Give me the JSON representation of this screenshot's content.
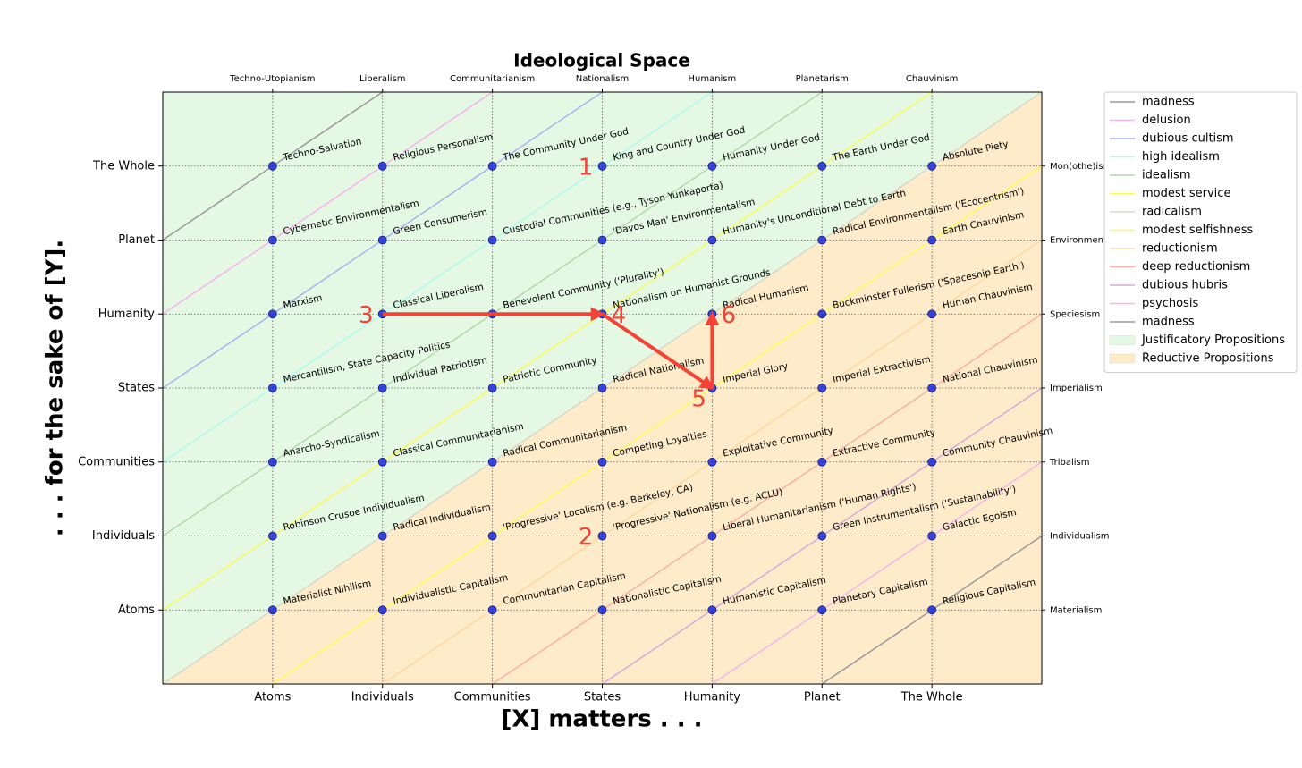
{
  "chart_data": {
    "type": "scatter",
    "title": "Ideological Space",
    "xlabel": "[X] matters . . .",
    "ylabel": ". . . for the sake of [Y].",
    "xlim": [
      0,
      8
    ],
    "ylim": [
      0,
      8
    ],
    "xticks": [
      {
        "value": 1,
        "label": "Atoms"
      },
      {
        "value": 2,
        "label": "Individuals"
      },
      {
        "value": 3,
        "label": "Communities"
      },
      {
        "value": 4,
        "label": "States"
      },
      {
        "value": 5,
        "label": "Humanity"
      },
      {
        "value": 6,
        "label": "Planet"
      },
      {
        "value": 7,
        "label": "The Whole"
      }
    ],
    "yticks": [
      {
        "value": 1,
        "label": "Atoms"
      },
      {
        "value": 2,
        "label": "Individuals"
      },
      {
        "value": 3,
        "label": "Communities"
      },
      {
        "value": 4,
        "label": "States"
      },
      {
        "value": 5,
        "label": "Humanity"
      },
      {
        "value": 6,
        "label": "Planet"
      },
      {
        "value": 7,
        "label": "The Whole"
      }
    ],
    "x2ticks": [
      {
        "value": 1,
        "label": "Techno-Utopianism"
      },
      {
        "value": 2,
        "label": "Liberalism"
      },
      {
        "value": 3,
        "label": "Communitarianism"
      },
      {
        "value": 4,
        "label": "Nationalism"
      },
      {
        "value": 5,
        "label": "Humanism"
      },
      {
        "value": 6,
        "label": "Planetarism"
      },
      {
        "value": 7,
        "label": "Chauvinism"
      }
    ],
    "y2ticks": [
      {
        "value": 1,
        "label": "Materialism"
      },
      {
        "value": 2,
        "label": "Individualism"
      },
      {
        "value": 3,
        "label": "Tribalism"
      },
      {
        "value": 4,
        "label": "Imperialism"
      },
      {
        "value": 5,
        "label": "Speciesism"
      },
      {
        "value": 6,
        "label": "Environmentalism"
      },
      {
        "value": 7,
        "label": "Mon(othe)ism"
      }
    ],
    "grid": true,
    "point_color": "#2233dd",
    "legend": "upper right outside",
    "regions": [
      {
        "name": "Justificatory Propositions",
        "color": "#e4f8e4",
        "side": "above"
      },
      {
        "name": "Reductive Propositions",
        "color": "#fdebc9",
        "side": "below"
      }
    ],
    "lines": [
      {
        "name": "madness",
        "color": "#9a9a9a",
        "offset": 6
      },
      {
        "name": "delusion",
        "color": "#f7b3ea",
        "offset": 5
      },
      {
        "name": "dubious cultism",
        "color": "#aab2f0",
        "offset": 4
      },
      {
        "name": "high idealism",
        "color": "#b0fbef",
        "offset": 3
      },
      {
        "name": "idealism",
        "color": "#b2d9ac",
        "offset": 2
      },
      {
        "name": "modest service",
        "color": "#fbfb55",
        "offset": 1
      },
      {
        "name": "radicalism",
        "color": "#d8d8c8",
        "offset": 0
      },
      {
        "name": "modest selfishness",
        "color": "#fbfb55",
        "offset": -1
      },
      {
        "name": "reductionism",
        "color": "#fdd9a0",
        "offset": -2
      },
      {
        "name": "deep reductionism",
        "color": "#f8b0a8",
        "offset": -3
      },
      {
        "name": "dubious hubris",
        "color": "#d8a8d8",
        "offset": -4
      },
      {
        "name": "psychosis",
        "color": "#f7b3ea",
        "offset": -5
      },
      {
        "name": "madness",
        "color": "#9a9a9a",
        "offset": -6
      }
    ],
    "points": [
      {
        "x": 1,
        "y": 7,
        "label": "Techno-Salvation"
      },
      {
        "x": 2,
        "y": 7,
        "label": "Religious Personalism"
      },
      {
        "x": 3,
        "y": 7,
        "label": "The Community Under God"
      },
      {
        "x": 4,
        "y": 7,
        "label": "King and Country Under God"
      },
      {
        "x": 5,
        "y": 7,
        "label": "Humanity Under God"
      },
      {
        "x": 6,
        "y": 7,
        "label": "The Earth Under God"
      },
      {
        "x": 7,
        "y": 7,
        "label": "Absolute Piety"
      },
      {
        "x": 1,
        "y": 6,
        "label": "Cybernetic Environmentalism"
      },
      {
        "x": 2,
        "y": 6,
        "label": "Green Consumerism"
      },
      {
        "x": 3,
        "y": 6,
        "label": "Custodial Communities (e.g., Tyson Yunkaporta)"
      },
      {
        "x": 4,
        "y": 6,
        "label": "'Davos Man' Environmentalism"
      },
      {
        "x": 5,
        "y": 6,
        "label": "Humanity's Unconditional Debt to Earth"
      },
      {
        "x": 6,
        "y": 6,
        "label": "Radical Environmentalism ('Ecocentrism')"
      },
      {
        "x": 7,
        "y": 6,
        "label": "Earth Chauvinism"
      },
      {
        "x": 1,
        "y": 5,
        "label": "Marxism"
      },
      {
        "x": 2,
        "y": 5,
        "label": "Classical Liberalism"
      },
      {
        "x": 3,
        "y": 5,
        "label": "Benevolent Community ('Plurality')"
      },
      {
        "x": 4,
        "y": 5,
        "label": "Nationalism on Humanist Grounds"
      },
      {
        "x": 5,
        "y": 5,
        "label": "Radical Humanism"
      },
      {
        "x": 6,
        "y": 5,
        "label": "Buckminster Fullerism ('Spaceship Earth')"
      },
      {
        "x": 7,
        "y": 5,
        "label": "Human Chauvinism"
      },
      {
        "x": 1,
        "y": 4,
        "label": "Mercantilism, State Capacity Politics"
      },
      {
        "x": 2,
        "y": 4,
        "label": "Individual Patriotism"
      },
      {
        "x": 3,
        "y": 4,
        "label": "Patriotic Community"
      },
      {
        "x": 4,
        "y": 4,
        "label": "Radical Nationalism"
      },
      {
        "x": 5,
        "y": 4,
        "label": "Imperial Glory"
      },
      {
        "x": 6,
        "y": 4,
        "label": "Imperial Extractivism"
      },
      {
        "x": 7,
        "y": 4,
        "label": "National Chauvinism"
      },
      {
        "x": 1,
        "y": 3,
        "label": "Anarcho-Syndicalism"
      },
      {
        "x": 2,
        "y": 3,
        "label": "Classical Communitarianism"
      },
      {
        "x": 3,
        "y": 3,
        "label": "Radical Communitarianism"
      },
      {
        "x": 4,
        "y": 3,
        "label": "Competing Loyalties"
      },
      {
        "x": 5,
        "y": 3,
        "label": "Exploitative Community"
      },
      {
        "x": 6,
        "y": 3,
        "label": "Extractive Community"
      },
      {
        "x": 7,
        "y": 3,
        "label": "Community Chauvinism"
      },
      {
        "x": 1,
        "y": 2,
        "label": "Robinson Crusoe Individualism"
      },
      {
        "x": 2,
        "y": 2,
        "label": "Radical Individualism"
      },
      {
        "x": 3,
        "y": 2,
        "label": "'Progressive' Localism (e.g. Berkeley, CA)"
      },
      {
        "x": 4,
        "y": 2,
        "label": "'Progressive' Nationalism (e.g. ACLU)"
      },
      {
        "x": 5,
        "y": 2,
        "label": "Liberal Humanitarianism ('Human Rights')"
      },
      {
        "x": 6,
        "y": 2,
        "label": "Green Instrumentalism ('Sustainability')"
      },
      {
        "x": 7,
        "y": 2,
        "label": "Galactic Egoism"
      },
      {
        "x": 1,
        "y": 1,
        "label": "Materialist Nihilism"
      },
      {
        "x": 2,
        "y": 1,
        "label": "Individualistic Capitalism"
      },
      {
        "x": 3,
        "y": 1,
        "label": "Communitarian Capitalism"
      },
      {
        "x": 4,
        "y": 1,
        "label": "Nationalistic Capitalism"
      },
      {
        "x": 5,
        "y": 1,
        "label": "Humanistic Capitalism"
      },
      {
        "x": 6,
        "y": 1,
        "label": "Planetary Capitalism"
      },
      {
        "x": 7,
        "y": 1,
        "label": "Religious Capitalism"
      }
    ],
    "annotation_color": "#f44336",
    "annotations": [
      {
        "text": "1",
        "x": 3.85,
        "y": 7
      },
      {
        "text": "2",
        "x": 3.85,
        "y": 2
      },
      {
        "text": "3",
        "x": 1.85,
        "y": 5
      },
      {
        "text": "4",
        "x": 4.15,
        "y": 5
      },
      {
        "text": "5",
        "x": 4.88,
        "y": 3.87
      },
      {
        "text": "6",
        "x": 5.15,
        "y": 5
      }
    ],
    "arrows": [
      {
        "from": [
          2,
          5
        ],
        "to": [
          4,
          5
        ]
      },
      {
        "from": [
          4,
          5
        ],
        "to": [
          5,
          4
        ]
      },
      {
        "from": [
          5,
          4
        ],
        "to": [
          5,
          5
        ]
      }
    ]
  }
}
